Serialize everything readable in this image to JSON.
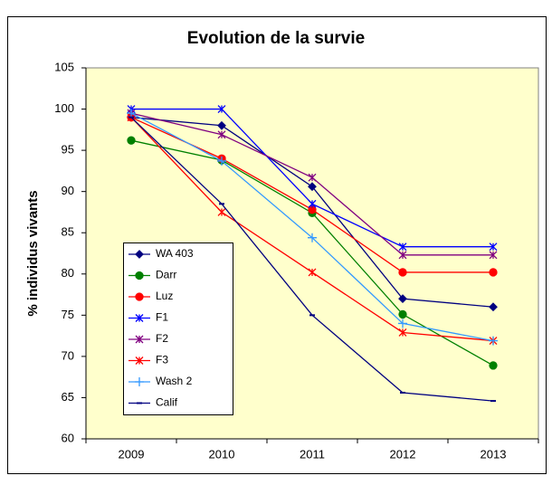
{
  "chart_data": {
    "type": "line",
    "title": "Evolution de la survie",
    "y_label": "% individus vivants",
    "categories": [
      "2009",
      "2010",
      "2011",
      "2012",
      "2013"
    ],
    "series": [
      {
        "name": "WA 403",
        "color": "#000080",
        "marker": "diamond",
        "values": [
          99,
          98,
          90.6,
          77,
          76
        ]
      },
      {
        "name": "Darr",
        "color": "#008000",
        "marker": "circle",
        "values": [
          96.2,
          93.8,
          87.4,
          75.1,
          68.9
        ]
      },
      {
        "name": "Luz",
        "color": "#ff0000",
        "marker": "circle",
        "values": [
          99,
          94,
          87.8,
          80.2,
          80.2
        ]
      },
      {
        "name": "F1",
        "color": "#0000ff",
        "marker": "star",
        "values": [
          100,
          100,
          88.5,
          83.3,
          83.3
        ]
      },
      {
        "name": "F2",
        "color": "#800080",
        "marker": "star",
        "values": [
          99.5,
          96.9,
          91.7,
          82.3,
          82.3
        ]
      },
      {
        "name": "F3",
        "color": "#ff0000",
        "marker": "star",
        "values": [
          99,
          87.5,
          80.2,
          72.9,
          71.9
        ]
      },
      {
        "name": "Wash 2",
        "color": "#3399ff",
        "marker": "plus",
        "values": [
          99.5,
          93.7,
          84.4,
          74,
          71.9
        ]
      },
      {
        "name": "Calif",
        "color": "#000080",
        "marker": "dash",
        "values": [
          99,
          88.5,
          75,
          65.6,
          64.6
        ]
      }
    ],
    "ylim": [
      60,
      105
    ],
    "yticks": [
      60,
      65,
      70,
      75,
      80,
      85,
      90,
      95,
      100,
      105
    ],
    "grid": false,
    "legend": "lower left"
  }
}
